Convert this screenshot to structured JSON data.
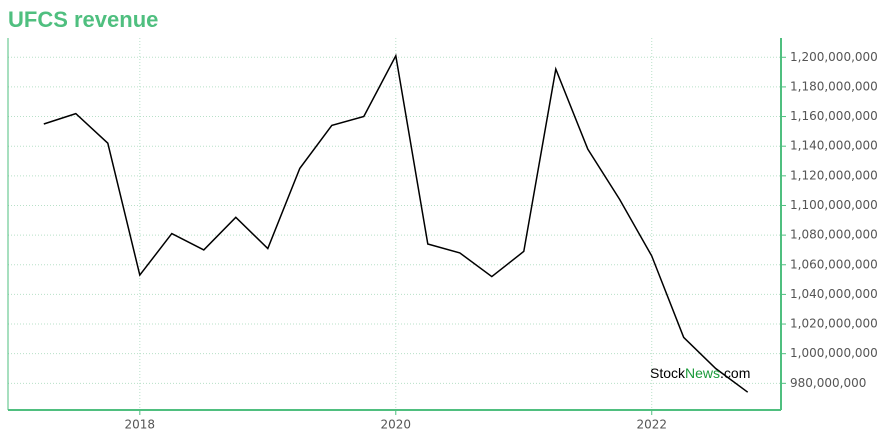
{
  "chart_data": {
    "type": "line",
    "title": "UFCS revenue",
    "x": [
      2017.25,
      2017.5,
      2017.75,
      2018.0,
      2018.25,
      2018.5,
      2018.75,
      2019.0,
      2019.25,
      2019.5,
      2019.75,
      2020.0,
      2020.25,
      2020.5,
      2020.75,
      2021.0,
      2021.25,
      2021.5,
      2021.75,
      2022.0,
      2022.25,
      2022.5,
      2022.75
    ],
    "series": [
      {
        "name": "UFCS revenue",
        "color": "#000000",
        "values": [
          1155000000,
          1162000000,
          1142000000,
          1053000000,
          1081000000,
          1070000000,
          1092000000,
          1071000000,
          1125000000,
          1154000000,
          1160000000,
          1201000000,
          1074000000,
          1068000000,
          1052000000,
          1069000000,
          1192000000,
          1138000000,
          1104000000,
          1066000000,
          1011000000,
          990000000,
          974000000
        ]
      }
    ],
    "xlim": [
      2016.97,
      2023.01
    ],
    "xticks": [
      2018,
      2020,
      2022
    ],
    "ylim": [
      962000000,
      1213000000
    ],
    "yticks": [
      {
        "value": 980000000,
        "label": "980,000,000"
      },
      {
        "value": 1000000000,
        "label": "1,000,000,000"
      },
      {
        "value": 1020000000,
        "label": "1,020,000,000"
      },
      {
        "value": 1040000000,
        "label": "1,040,000,000"
      },
      {
        "value": 1060000000,
        "label": "1,060,000,000"
      },
      {
        "value": 1080000000,
        "label": "1,080,000,000"
      },
      {
        "value": 1100000000,
        "label": "1,100,000,000"
      },
      {
        "value": 1120000000,
        "label": "1,120,000,000"
      },
      {
        "value": 1140000000,
        "label": "1,140,000,000"
      },
      {
        "value": 1160000000,
        "label": "1,160,000,000"
      },
      {
        "value": 1180000000,
        "label": "1,180,000,000"
      },
      {
        "value": 1200000000,
        "label": "1,200,000,000"
      }
    ],
    "grid": true,
    "axis_color": "#4fbf7f",
    "watermark": [
      "Stock",
      "News",
      ".com"
    ]
  }
}
